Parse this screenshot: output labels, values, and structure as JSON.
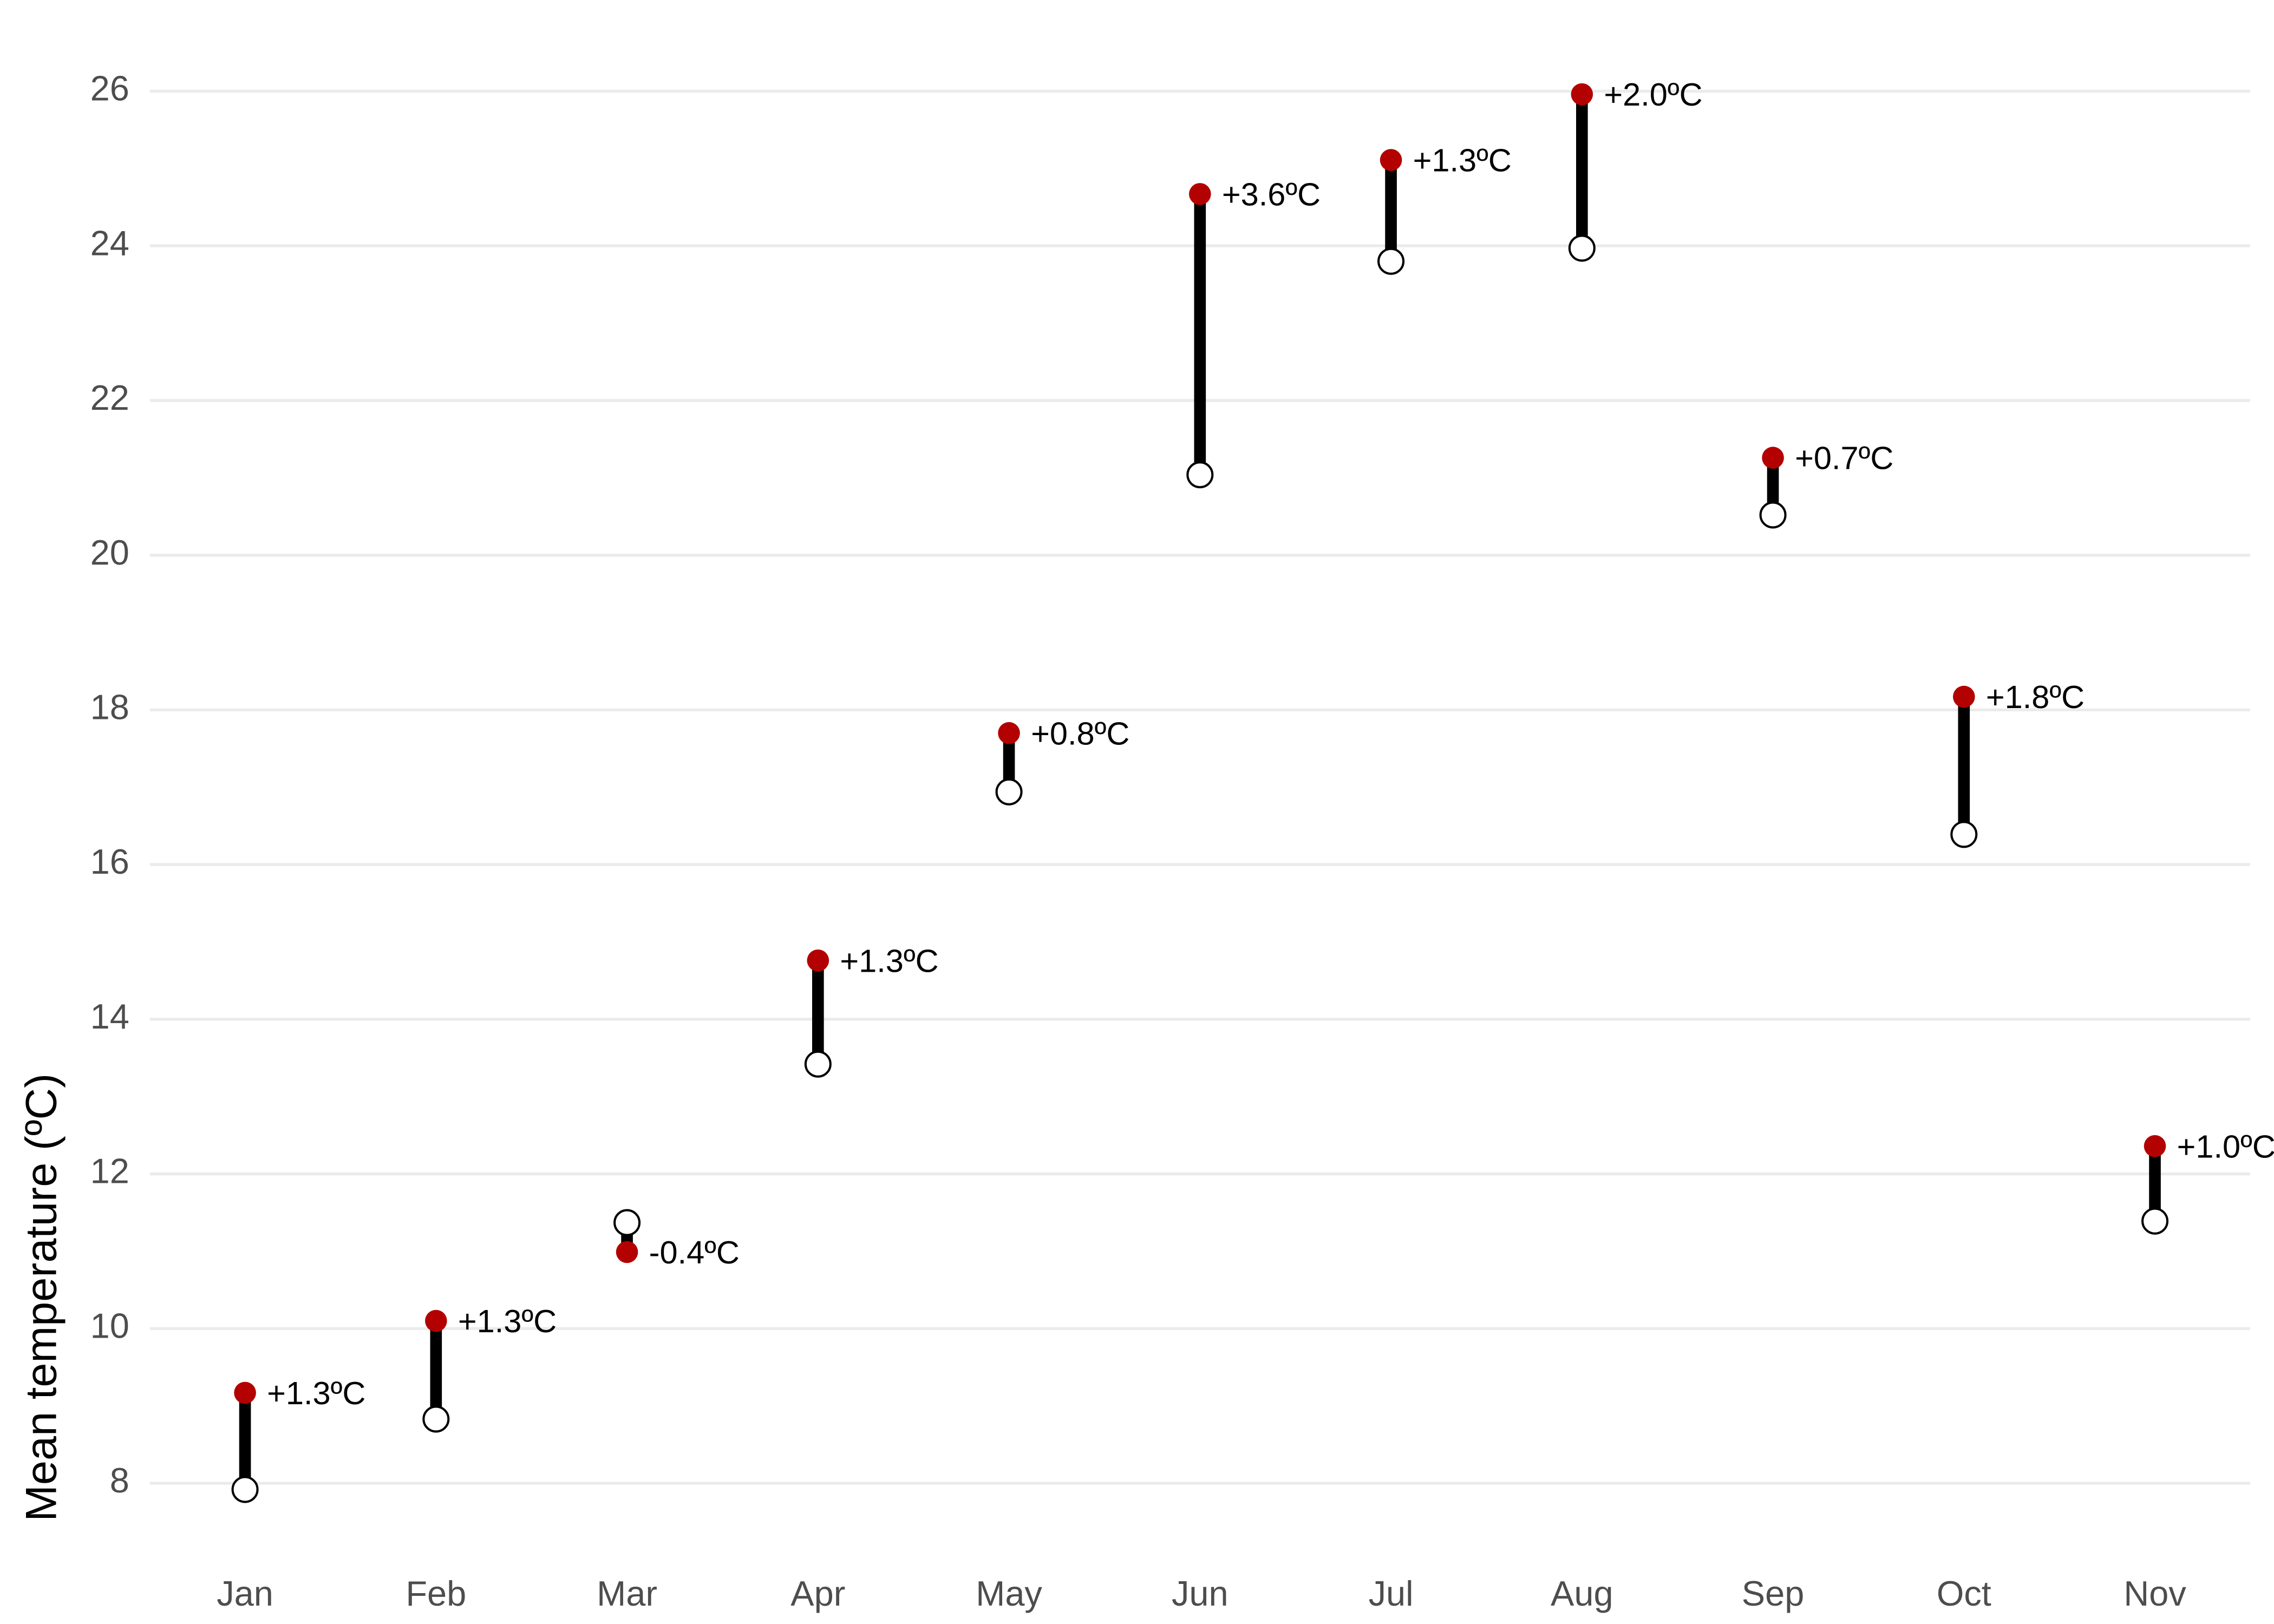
{
  "chart_data": {
    "type": "dumbbell",
    "y_label": "Mean temperature (ºC)",
    "categories": [
      "Jan",
      "Feb",
      "Mar",
      "Apr",
      "May",
      "Jun",
      "Jul",
      "Aug",
      "Sep",
      "Oct",
      "Nov"
    ],
    "series": [
      {
        "color": "#ffffff",
        "values": [
          7.92,
          8.83,
          11.37,
          13.42,
          16.94,
          21.04,
          23.8,
          23.97,
          20.52,
          16.39,
          11.39
        ]
      },
      {
        "color": "#b30000",
        "values": [
          9.17,
          10.1,
          10.99,
          14.76,
          17.7,
          24.67,
          25.11,
          25.96,
          21.26,
          18.17,
          12.36
        ]
      }
    ],
    "changes": {
      "values": [
        1.3,
        1.3,
        -0.4,
        1.3,
        0.8,
        3.6,
        1.3,
        2.0,
        0.7,
        1.8,
        1.0
      ],
      "value_labels": [
        "+1.3ºC",
        "+1.3ºC",
        "-0.4ºC",
        "+1.3ºC",
        "+0.8ºC",
        "+3.6ºC",
        "+1.3ºC",
        "+2.0ºC",
        "+0.7ºC",
        "+1.8ºC",
        "+1.0ºC"
      ]
    },
    "ylim": [
      6.9,
      26.8
    ],
    "yticks": [
      8,
      10,
      12,
      14,
      16,
      18,
      20,
      22,
      24,
      26
    ],
    "grid": true
  }
}
